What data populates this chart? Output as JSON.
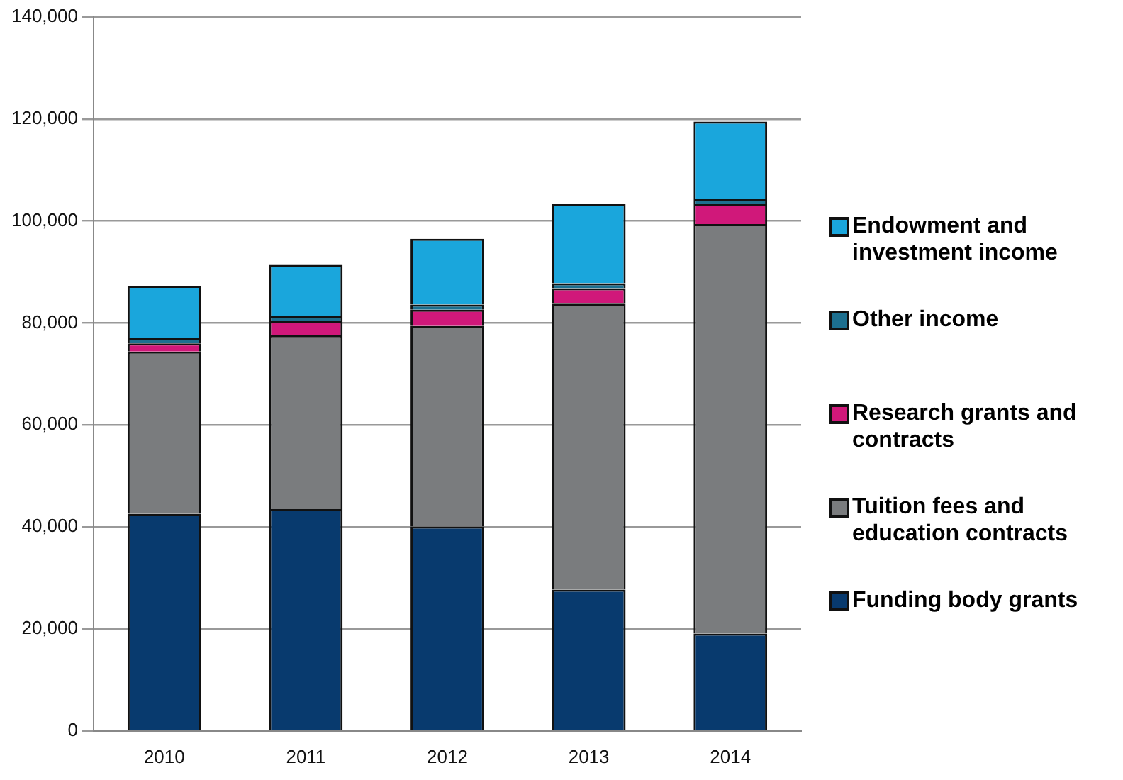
{
  "chart_data": {
    "type": "bar",
    "stacked": true,
    "categories": [
      "2010",
      "2011",
      "2012",
      "2013",
      "2014"
    ],
    "series": [
      {
        "name": "Funding body grants",
        "color": "#083a6e",
        "values": [
          42600,
          43500,
          40100,
          27700,
          19100
        ]
      },
      {
        "name": "Tuition fees and education contracts",
        "color": "#7a7c7e",
        "values": [
          31800,
          34100,
          39300,
          56100,
          80300
        ]
      },
      {
        "name": "Research grants and contracts",
        "color": "#d0187a",
        "values": [
          1600,
          2800,
          3200,
          3000,
          4000
        ]
      },
      {
        "name": "Other income",
        "color": "#1c6f8f",
        "values": [
          1000,
          1000,
          1000,
          1000,
          1000
        ]
      },
      {
        "name": "Endowment and investment income",
        "color": "#1aa6dc",
        "values": [
          10300,
          10000,
          12900,
          15600,
          15100
        ]
      }
    ],
    "ylim": [
      0,
      140000
    ],
    "yticks": [
      0,
      {
        "value": 20000,
        "label": "20,000"
      },
      {
        "value": 40000,
        "label": "40,000"
      },
      {
        "value": 60000,
        "label": "60,000"
      },
      {
        "value": 80000,
        "label": "80,000"
      },
      {
        "value": 100000,
        "label": "100,000"
      },
      {
        "value": 120000,
        "label": "120,000"
      },
      {
        "value": 140000,
        "label": "140,000"
      }
    ],
    "grid": "y",
    "legend": "right"
  }
}
